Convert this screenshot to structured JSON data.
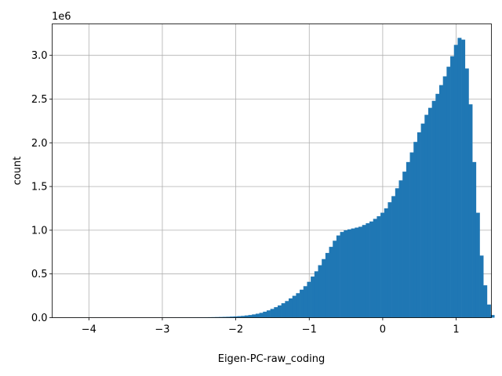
{
  "chart_data": {
    "type": "bar",
    "title": "",
    "xlabel": "Eigen-PC-raw_coding",
    "ylabel": "count",
    "y_multiplier": "1e6",
    "xlim": [
      -4.5,
      1.48
    ],
    "ylim": [
      0,
      3.36
    ],
    "grid": true,
    "bar_color": "#1f77b4",
    "x_ticks": [
      {
        "value": -4,
        "label": "−4"
      },
      {
        "value": -3,
        "label": "−3"
      },
      {
        "value": -2,
        "label": "−2"
      },
      {
        "value": -1,
        "label": "−1"
      },
      {
        "value": 0,
        "label": "0"
      },
      {
        "value": 1,
        "label": "1"
      }
    ],
    "y_ticks": [
      {
        "value": 0.0,
        "label": "0.0"
      },
      {
        "value": 0.5,
        "label": "0.5"
      },
      {
        "value": 1.0,
        "label": "1.0"
      },
      {
        "value": 1.5,
        "label": "1.5"
      },
      {
        "value": 2.0,
        "label": "2.0"
      },
      {
        "value": 2.5,
        "label": "2.5"
      },
      {
        "value": 3.0,
        "label": "3.0"
      }
    ],
    "bins": {
      "start": -4.23,
      "width": 0.05,
      "values": [
        0.0002,
        0.0002,
        0.0002,
        0.0002,
        0.0002,
        0.0002,
        0.0002,
        0.0002,
        0.0002,
        0.0002,
        0.0002,
        0.0002,
        0.0002,
        0.0002,
        0.0003,
        0.0003,
        0.0003,
        0.0004,
        0.0004,
        0.0005,
        0.0005,
        0.0006,
        0.0007,
        0.0008,
        0.0009,
        0.001,
        0.0012,
        0.0014,
        0.0016,
        0.0018,
        0.002,
        0.0023,
        0.0026,
        0.003,
        0.0035,
        0.004,
        0.0046,
        0.0053,
        0.006,
        0.0068,
        0.0077,
        0.0088,
        0.01,
        0.012,
        0.014,
        0.017,
        0.02,
        0.025,
        0.03,
        0.037,
        0.045,
        0.055,
        0.068,
        0.083,
        0.1,
        0.12,
        0.14,
        0.165,
        0.19,
        0.22,
        0.25,
        0.28,
        0.32,
        0.36,
        0.41,
        0.47,
        0.53,
        0.6,
        0.67,
        0.74,
        0.81,
        0.88,
        0.94,
        0.98,
        1.0,
        1.01,
        1.02,
        1.03,
        1.04,
        1.06,
        1.08,
        1.1,
        1.13,
        1.16,
        1.2,
        1.25,
        1.32,
        1.39,
        1.48,
        1.57,
        1.67,
        1.78,
        1.89,
        2.01,
        2.12,
        2.22,
        2.32,
        2.4,
        2.48,
        2.56,
        2.66,
        2.76,
        2.87,
        2.99,
        3.12,
        3.2,
        3.18,
        2.85,
        2.44,
        1.78,
        1.2,
        0.71,
        0.37,
        0.15,
        0.03
      ]
    }
  }
}
